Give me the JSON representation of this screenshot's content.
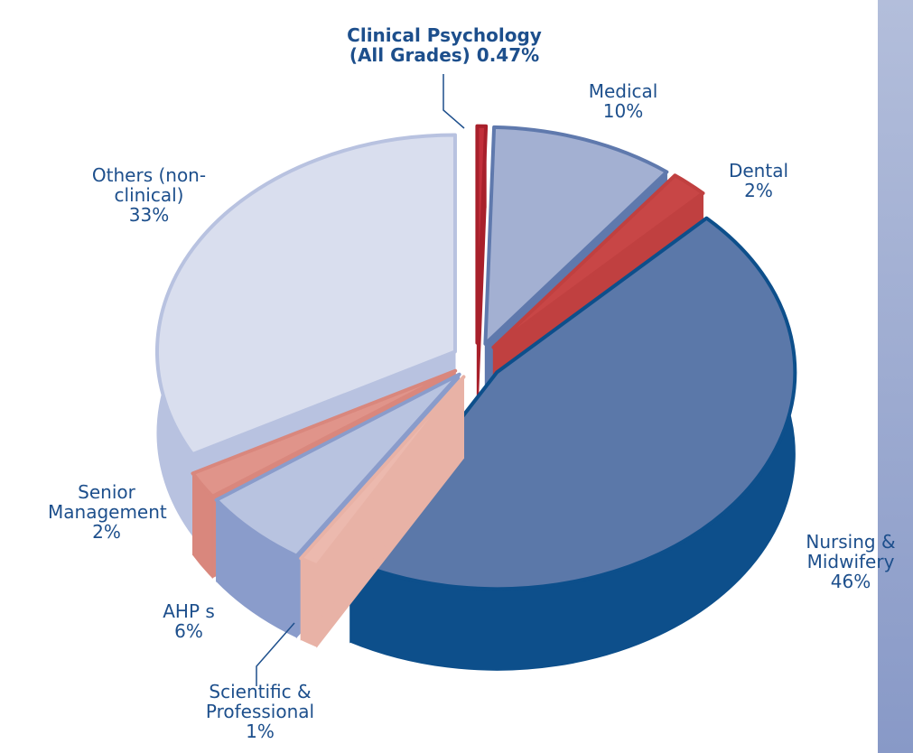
{
  "chart_data": {
    "type": "pie",
    "categories": [
      "Clinical Psychology (All Grades)",
      "Medical",
      "Dental",
      "Nursing & Midwifery",
      "Scientific & Professional",
      "AHP s",
      "Senior Management",
      "Others (non-clinical)"
    ],
    "values": [
      0.47,
      10,
      2,
      46,
      1,
      6,
      2,
      33
    ],
    "value_labels": [
      "0.47%",
      "10%",
      "2%",
      "46%",
      "1%",
      "6%",
      "2%",
      "33%"
    ],
    "colors": [
      "#c22f3a",
      "#a3b0d2",
      "#c84646",
      "#5b78a9",
      "#ecb9ae",
      "#b8c3e0",
      "#e0948a",
      "#d9deee"
    ],
    "side_colors": [
      "#a8202b",
      "#5f79ad",
      "#c04040",
      "#0d4f8b",
      "#e8b2a6",
      "#8a9ccb",
      "#d9877d",
      "#b8c2e0"
    ]
  }
}
